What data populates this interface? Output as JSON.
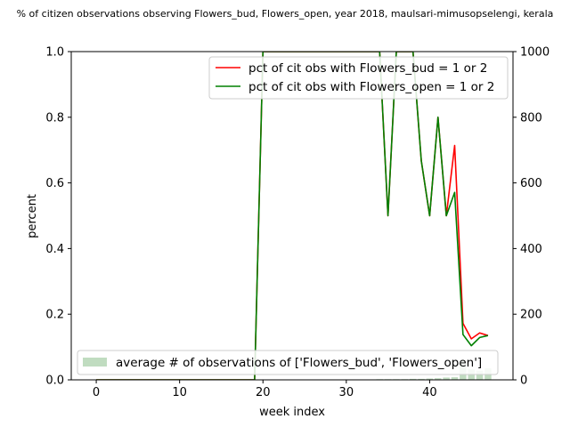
{
  "chart_data": {
    "type": "line",
    "title": "% of citizen observations observing Flowers_bud, Flowers_open, year 2018, maulsari-mimusopselengi, kerala",
    "xlabel": "week index",
    "ylabel": "percent",
    "xlim": [
      -3,
      50
    ],
    "ylim": [
      0,
      1.0
    ],
    "y2lim": [
      0,
      1000
    ],
    "xticks": [
      0,
      10,
      20,
      30,
      40
    ],
    "yticks": [
      0.0,
      0.2,
      0.4,
      0.6,
      0.8,
      1.0
    ],
    "y2ticks": [
      0,
      200,
      400,
      600,
      800,
      1000
    ],
    "grid": false,
    "legend_upper": "upper right",
    "legend_lower": "lower right",
    "series": [
      {
        "name": "pct of cit obs with Flowers_bud = 1 or 2",
        "color": "#ff0000",
        "axis": "left",
        "x": [
          0,
          1,
          2,
          3,
          4,
          5,
          6,
          7,
          8,
          9,
          10,
          11,
          12,
          13,
          14,
          15,
          16,
          17,
          18,
          19,
          20,
          21,
          22,
          23,
          24,
          25,
          26,
          27,
          28,
          29,
          30,
          31,
          32,
          33,
          34,
          35,
          36,
          37,
          38,
          39,
          40,
          41,
          42,
          43,
          44,
          45,
          46,
          47
        ],
        "y": [
          0,
          0,
          0,
          0,
          0,
          0,
          0,
          0,
          0,
          0,
          0,
          0,
          0,
          0,
          0,
          0,
          0,
          0,
          0,
          0,
          1.0,
          1.0,
          1.0,
          1.0,
          1.0,
          1.0,
          1.0,
          1.0,
          1.0,
          1.0,
          1.0,
          1.0,
          1.0,
          1.0,
          1.0,
          0.5,
          1.0,
          1.0,
          1.0,
          0.667,
          0.5,
          0.8,
          0.5,
          0.714,
          0.172,
          0.125,
          0.143,
          0.135
        ]
      },
      {
        "name": "pct of cit obs with Flowers_open = 1 or 2",
        "color": "#008000",
        "axis": "left",
        "x": [
          0,
          1,
          2,
          3,
          4,
          5,
          6,
          7,
          8,
          9,
          10,
          11,
          12,
          13,
          14,
          15,
          16,
          17,
          18,
          19,
          20,
          21,
          22,
          23,
          24,
          25,
          26,
          27,
          28,
          29,
          30,
          31,
          32,
          33,
          34,
          35,
          36,
          37,
          38,
          39,
          40,
          41,
          42,
          43,
          44,
          45,
          46,
          47
        ],
        "y": [
          0,
          0,
          0,
          0,
          0,
          0,
          0,
          0,
          0,
          0,
          0,
          0,
          0,
          0,
          0,
          0,
          0,
          0,
          0,
          0,
          1.0,
          1.0,
          1.0,
          1.0,
          1.0,
          1.0,
          1.0,
          1.0,
          1.0,
          1.0,
          1.0,
          1.0,
          1.0,
          1.0,
          1.0,
          0.5,
          1.0,
          1.0,
          1.0,
          0.667,
          0.5,
          0.8,
          0.5,
          0.571,
          0.138,
          0.104,
          0.129,
          0.135
        ]
      },
      {
        "name": "average # of observations of ['Flowers_bud', 'Flowers_open']",
        "type": "bar",
        "color": "#2e8b2e",
        "opacity": 0.3,
        "axis": "right",
        "x": [
          0,
          1,
          2,
          3,
          4,
          5,
          6,
          7,
          8,
          9,
          10,
          11,
          12,
          13,
          14,
          15,
          16,
          17,
          18,
          19,
          20,
          21,
          22,
          23,
          24,
          25,
          26,
          27,
          28,
          29,
          30,
          31,
          32,
          33,
          34,
          35,
          36,
          37,
          38,
          39,
          40,
          41,
          42,
          43,
          44,
          45,
          46,
          47
        ],
        "values": [
          1,
          1,
          1,
          1,
          1,
          1,
          1,
          1,
          1,
          1,
          1,
          1,
          1,
          1,
          1,
          1,
          1,
          1,
          1,
          1,
          1,
          1,
          1,
          1,
          1,
          1,
          1,
          1,
          1,
          1,
          1,
          1,
          1,
          1,
          2,
          2,
          2,
          2,
          3,
          3,
          4,
          5,
          7,
          8,
          60,
          32,
          28,
          35
        ]
      }
    ]
  }
}
